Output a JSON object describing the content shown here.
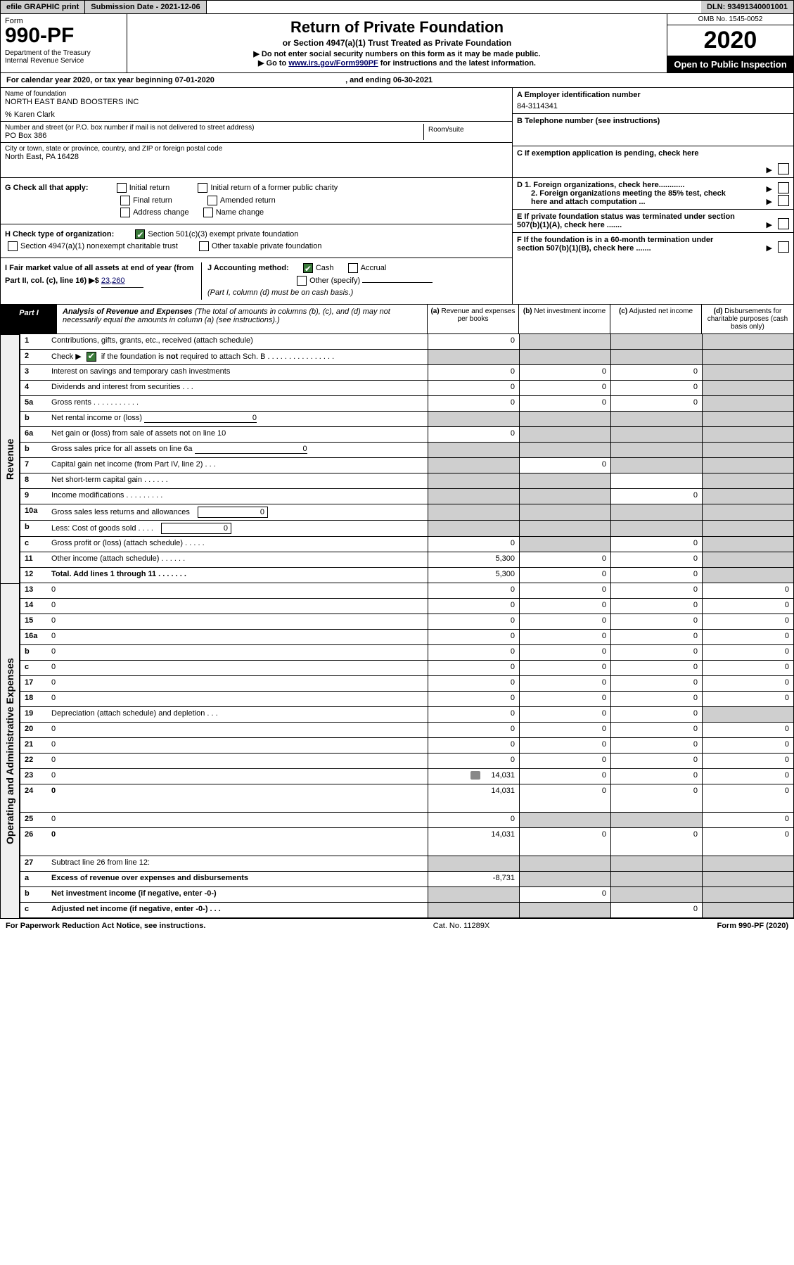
{
  "top": {
    "efile": "efile GRAPHIC print",
    "sub_date_label": "Submission Date - 2021-12-06",
    "dln": "DLN: 93491340001001"
  },
  "header": {
    "form_label": "Form",
    "form_number": "990-PF",
    "dept": "Department of the Treasury\nInternal Revenue Service",
    "title": "Return of Private Foundation",
    "sub1": "or Section 4947(a)(1) Trust Treated as Private Foundation",
    "sub2a": "▶ Do not enter social security numbers on this form as it may be made public.",
    "sub2b": "▶ Go to ",
    "link": "www.irs.gov/Form990PF",
    "sub2c": " for instructions and the latest information.",
    "omb": "OMB No. 1545-0052",
    "year": "2020",
    "open_public": "Open to Public Inspection"
  },
  "cal_year": {
    "prefix": "For calendar year 2020, or tax year beginning ",
    "begin": "07-01-2020",
    "mid": " , and ending ",
    "end": "06-30-2021"
  },
  "name_block": {
    "name_label": "Name of foundation",
    "name": "NORTH EAST BAND BOOSTERS INC",
    "care_of": "% Karen Clark",
    "addr_label": "Number and street (or P.O. box number if mail is not delivered to street address)",
    "addr": "PO Box 386",
    "room_label": "Room/suite",
    "city_label": "City or town, state or province, country, and ZIP or foreign postal code",
    "city": "North East, PA  16428"
  },
  "right_info": {
    "a_label": "A Employer identification number",
    "a_val": "84-3114341",
    "b_label": "B Telephone number (see instructions)",
    "c_label": "C If exemption application is pending, check here",
    "d1": "D 1. Foreign organizations, check here............",
    "d2": "2. Foreign organizations meeting the 85% test, check here and attach computation ...",
    "e": "E  If private foundation status was terminated under section 507(b)(1)(A), check here .......",
    "f": "F  If the foundation is in a 60-month termination under section 507(b)(1)(B), check here .......",
    "arrow": "▶"
  },
  "g": {
    "label": "G Check all that apply:",
    "initial_return": "Initial return",
    "initial_former": "Initial return of a former public charity",
    "final_return": "Final return",
    "amended": "Amended return",
    "addr_change": "Address change",
    "name_change": "Name change"
  },
  "h": {
    "label": "H Check type of organization:",
    "c3": "Section 501(c)(3) exempt private foundation",
    "trust": "Section 4947(a)(1) nonexempt charitable trust",
    "other": "Other taxable private foundation"
  },
  "i": {
    "label": "I Fair market value of all assets at end of year (from Part II, col. (c), line 16) ▶$ ",
    "val": "23,260"
  },
  "j": {
    "label": "J Accounting method:",
    "cash": "Cash",
    "accrual": "Accrual",
    "other": "Other (specify)",
    "note": "(Part I, column (d) must be on cash basis.)"
  },
  "part1": {
    "label": "Part I",
    "title": "Analysis of Revenue and Expenses",
    "note": " (The total of amounts in columns (b), (c), and (d) may not necessarily equal the amounts in column (a) (see instructions).)",
    "col_a": "(a)   Revenue and expenses per books",
    "col_b": "(b)   Net investment income",
    "col_c": "(c)   Adjusted net income",
    "col_d": "(d)   Disbursements for charitable purposes (cash basis only)"
  },
  "sections": {
    "revenue": "Revenue",
    "expenses": "Operating and Administrative Expenses"
  },
  "rows": [
    {
      "n": "1",
      "d": "Contributions, gifts, grants, etc., received (attach schedule)",
      "a": "0",
      "bs": true,
      "cs": true,
      "ds": true
    },
    {
      "n": "2",
      "d": "Check ▶ [✔] if the foundation is not required to attach Sch. B   .  .  .  .  .  .  .  .  .  .  .  .  .  .  .  .",
      "as": true,
      "bs": true,
      "cs": true,
      "ds": true,
      "check": true
    },
    {
      "n": "3",
      "d": "Interest on savings and temporary cash investments",
      "a": "0",
      "b": "0",
      "c": "0",
      "ds": true
    },
    {
      "n": "4",
      "d": "Dividends and interest from securities   .   .   .",
      "a": "0",
      "b": "0",
      "c": "0",
      "ds": true
    },
    {
      "n": "5a",
      "d": "Gross rents   .   .   .   .   .   .   .   .   .   .   .",
      "a": "0",
      "b": "0",
      "c": "0",
      "ds": true
    },
    {
      "n": "b",
      "d": "Net rental income or (loss)",
      "inline": "0",
      "as": true,
      "bs": true,
      "cs": true,
      "ds": true
    },
    {
      "n": "6a",
      "d": "Net gain or (loss) from sale of assets not on line 10",
      "a": "0",
      "bs": true,
      "cs": true,
      "ds": true
    },
    {
      "n": "b",
      "d": "Gross sales price for all assets on line 6a",
      "inline": "0",
      "as": true,
      "bs": true,
      "cs": true,
      "ds": true
    },
    {
      "n": "7",
      "d": "Capital gain net income (from Part IV, line 2)   .   .   .",
      "as": true,
      "b": "0",
      "cs": true,
      "ds": true
    },
    {
      "n": "8",
      "d": "Net short-term capital gain   .   .   .   .   .   .",
      "as": true,
      "bs": true,
      "ds": true
    },
    {
      "n": "9",
      "d": "Income modifications  .   .   .   .   .   .   .   .   .",
      "as": true,
      "bs": true,
      "c": "0",
      "ds": true
    },
    {
      "n": "10a",
      "d": "Gross sales less returns and allowances",
      "box": "0",
      "as": true,
      "bs": true,
      "cs": true,
      "ds": true
    },
    {
      "n": "b",
      "d": "Less: Cost of goods sold   .   .   .   .",
      "box": "0",
      "as": true,
      "bs": true,
      "cs": true,
      "ds": true
    },
    {
      "n": "c",
      "d": "Gross profit or (loss) (attach schedule)   .   .   .   .   .",
      "a": "0",
      "bs": true,
      "c": "0",
      "ds": true
    },
    {
      "n": "11",
      "d": "Other income (attach schedule)   .   .   .   .   .   .",
      "a": "5,300",
      "b": "0",
      "c": "0",
      "ds": true
    },
    {
      "n": "12",
      "d": "Total. Add lines 1 through 11   .   .   .   .   .   .   .",
      "a": "5,300",
      "b": "0",
      "c": "0",
      "ds": true,
      "bold": true
    }
  ],
  "exp_rows": [
    {
      "n": "13",
      "d": "0",
      "a": "0",
      "b": "0",
      "c": "0"
    },
    {
      "n": "14",
      "d": "0",
      "a": "0",
      "b": "0",
      "c": "0"
    },
    {
      "n": "15",
      "d": "0",
      "a": "0",
      "b": "0",
      "c": "0"
    },
    {
      "n": "16a",
      "d": "0",
      "a": "0",
      "b": "0",
      "c": "0"
    },
    {
      "n": "b",
      "d": "0",
      "a": "0",
      "b": "0",
      "c": "0"
    },
    {
      "n": "c",
      "d": "0",
      "a": "0",
      "b": "0",
      "c": "0"
    },
    {
      "n": "17",
      "d": "0",
      "a": "0",
      "b": "0",
      "c": "0"
    },
    {
      "n": "18",
      "d": "0",
      "a": "0",
      "b": "0",
      "c": "0"
    },
    {
      "n": "19",
      "d": "Depreciation (attach schedule) and depletion   .   .   .",
      "a": "0",
      "b": "0",
      "c": "0",
      "ds": true
    },
    {
      "n": "20",
      "d": "0",
      "a": "0",
      "b": "0",
      "c": "0"
    },
    {
      "n": "21",
      "d": "0",
      "a": "0",
      "b": "0",
      "c": "0"
    },
    {
      "n": "22",
      "d": "0",
      "a": "0",
      "b": "0",
      "c": "0"
    },
    {
      "n": "23",
      "d": "0",
      "a": "14,031",
      "b": "0",
      "c": "0",
      "attach": true
    },
    {
      "n": "24",
      "d": "0",
      "a": "14,031",
      "b": "0",
      "c": "0",
      "bold": true,
      "tall": true
    },
    {
      "n": "25",
      "d": "0",
      "a": "0",
      "bs": true,
      "cs": true
    },
    {
      "n": "26",
      "d": "0",
      "a": "14,031",
      "b": "0",
      "c": "0",
      "bold": true,
      "tall": true
    },
    {
      "n": "27",
      "d": "Subtract line 26 from line 12:",
      "as": true,
      "bs": true,
      "cs": true,
      "ds": true
    },
    {
      "n": "a",
      "d": "Excess of revenue over expenses and disbursements",
      "a": "-8,731",
      "bs": true,
      "cs": true,
      "ds": true,
      "bold": true
    },
    {
      "n": "b",
      "d": "Net investment income (if negative, enter -0-)",
      "as": true,
      "b": "0",
      "cs": true,
      "ds": true,
      "bold": true
    },
    {
      "n": "c",
      "d": "Adjusted net income (if negative, enter -0-)   .   .   .",
      "as": true,
      "bs": true,
      "c": "0",
      "ds": true,
      "bold": true
    }
  ],
  "footer": {
    "left": "For Paperwork Reduction Act Notice, see instructions.",
    "mid": "Cat. No. 11289X",
    "right": "Form 990-PF (2020)"
  }
}
